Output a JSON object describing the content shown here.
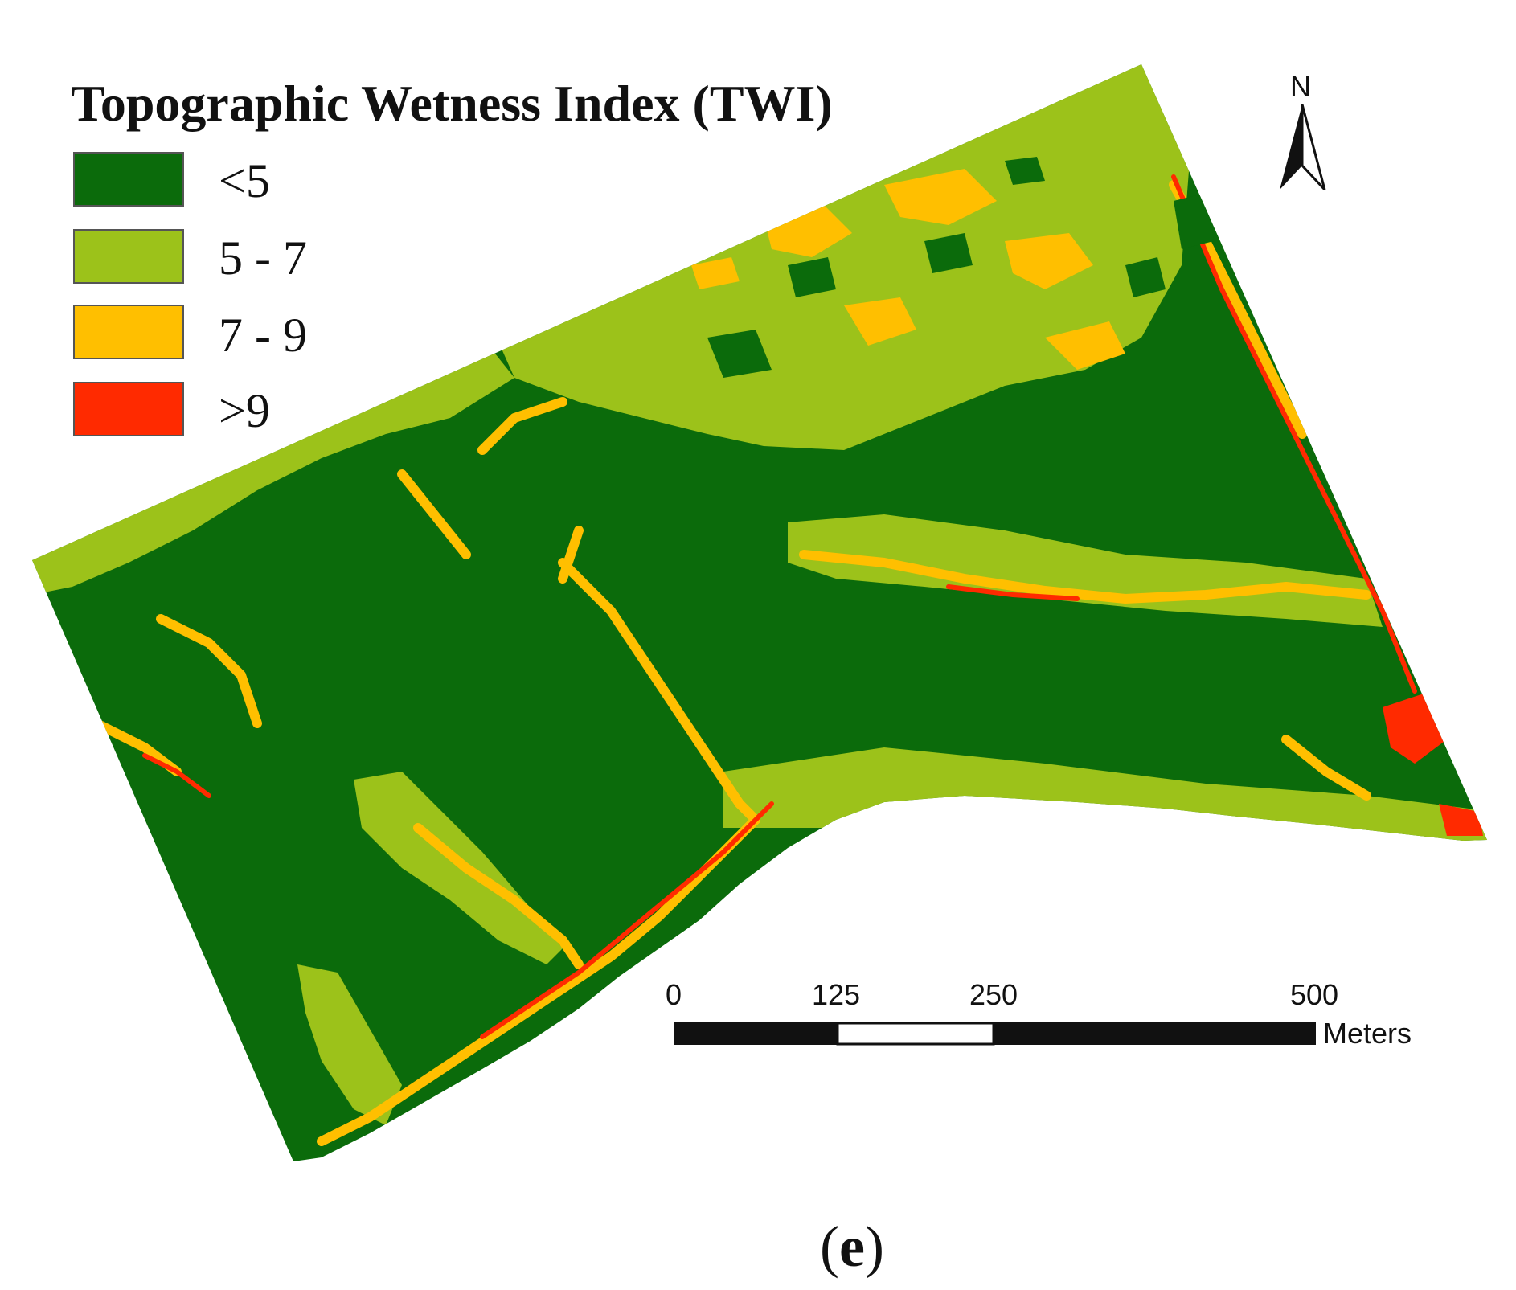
{
  "legend": {
    "title": "Topographic Wetness Index (TWI)",
    "classes": [
      {
        "label": "<5",
        "color": "#0b6b0b"
      },
      {
        "label": "5 - 7",
        "color": "#9cc21a"
      },
      {
        "label": "7 - 9",
        "color": "#ffbf00"
      },
      {
        "label": ">9",
        "color": "#ff2a00"
      }
    ]
  },
  "north_arrow": {
    "label": "N"
  },
  "scale_bar": {
    "ticks": [
      "0",
      "125",
      "250",
      "500"
    ],
    "unit": "Meters"
  },
  "caption": {
    "open": "(",
    "letter": "e",
    "close": ")"
  }
}
